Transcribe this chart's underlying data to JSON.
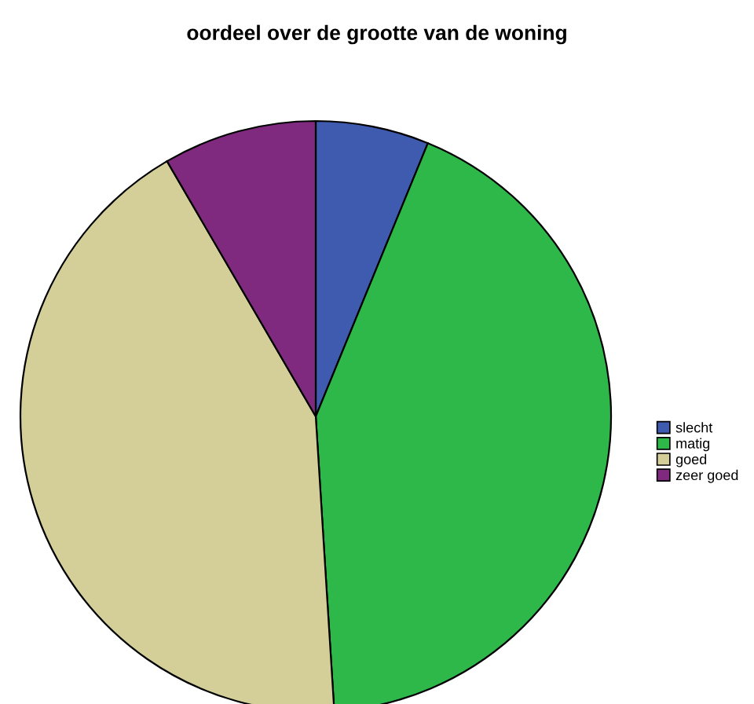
{
  "chart_data": {
    "type": "pie",
    "title": "oordeel over de grootte van de woning",
    "categories": [
      "slecht",
      "matig",
      "goed",
      "zeer goed"
    ],
    "values": [
      6.2,
      42.8,
      42.6,
      8.4
    ],
    "colors": [
      "#3f5bb0",
      "#2fb84a",
      "#d4cf99",
      "#7f2a7f"
    ],
    "legend": "right"
  }
}
